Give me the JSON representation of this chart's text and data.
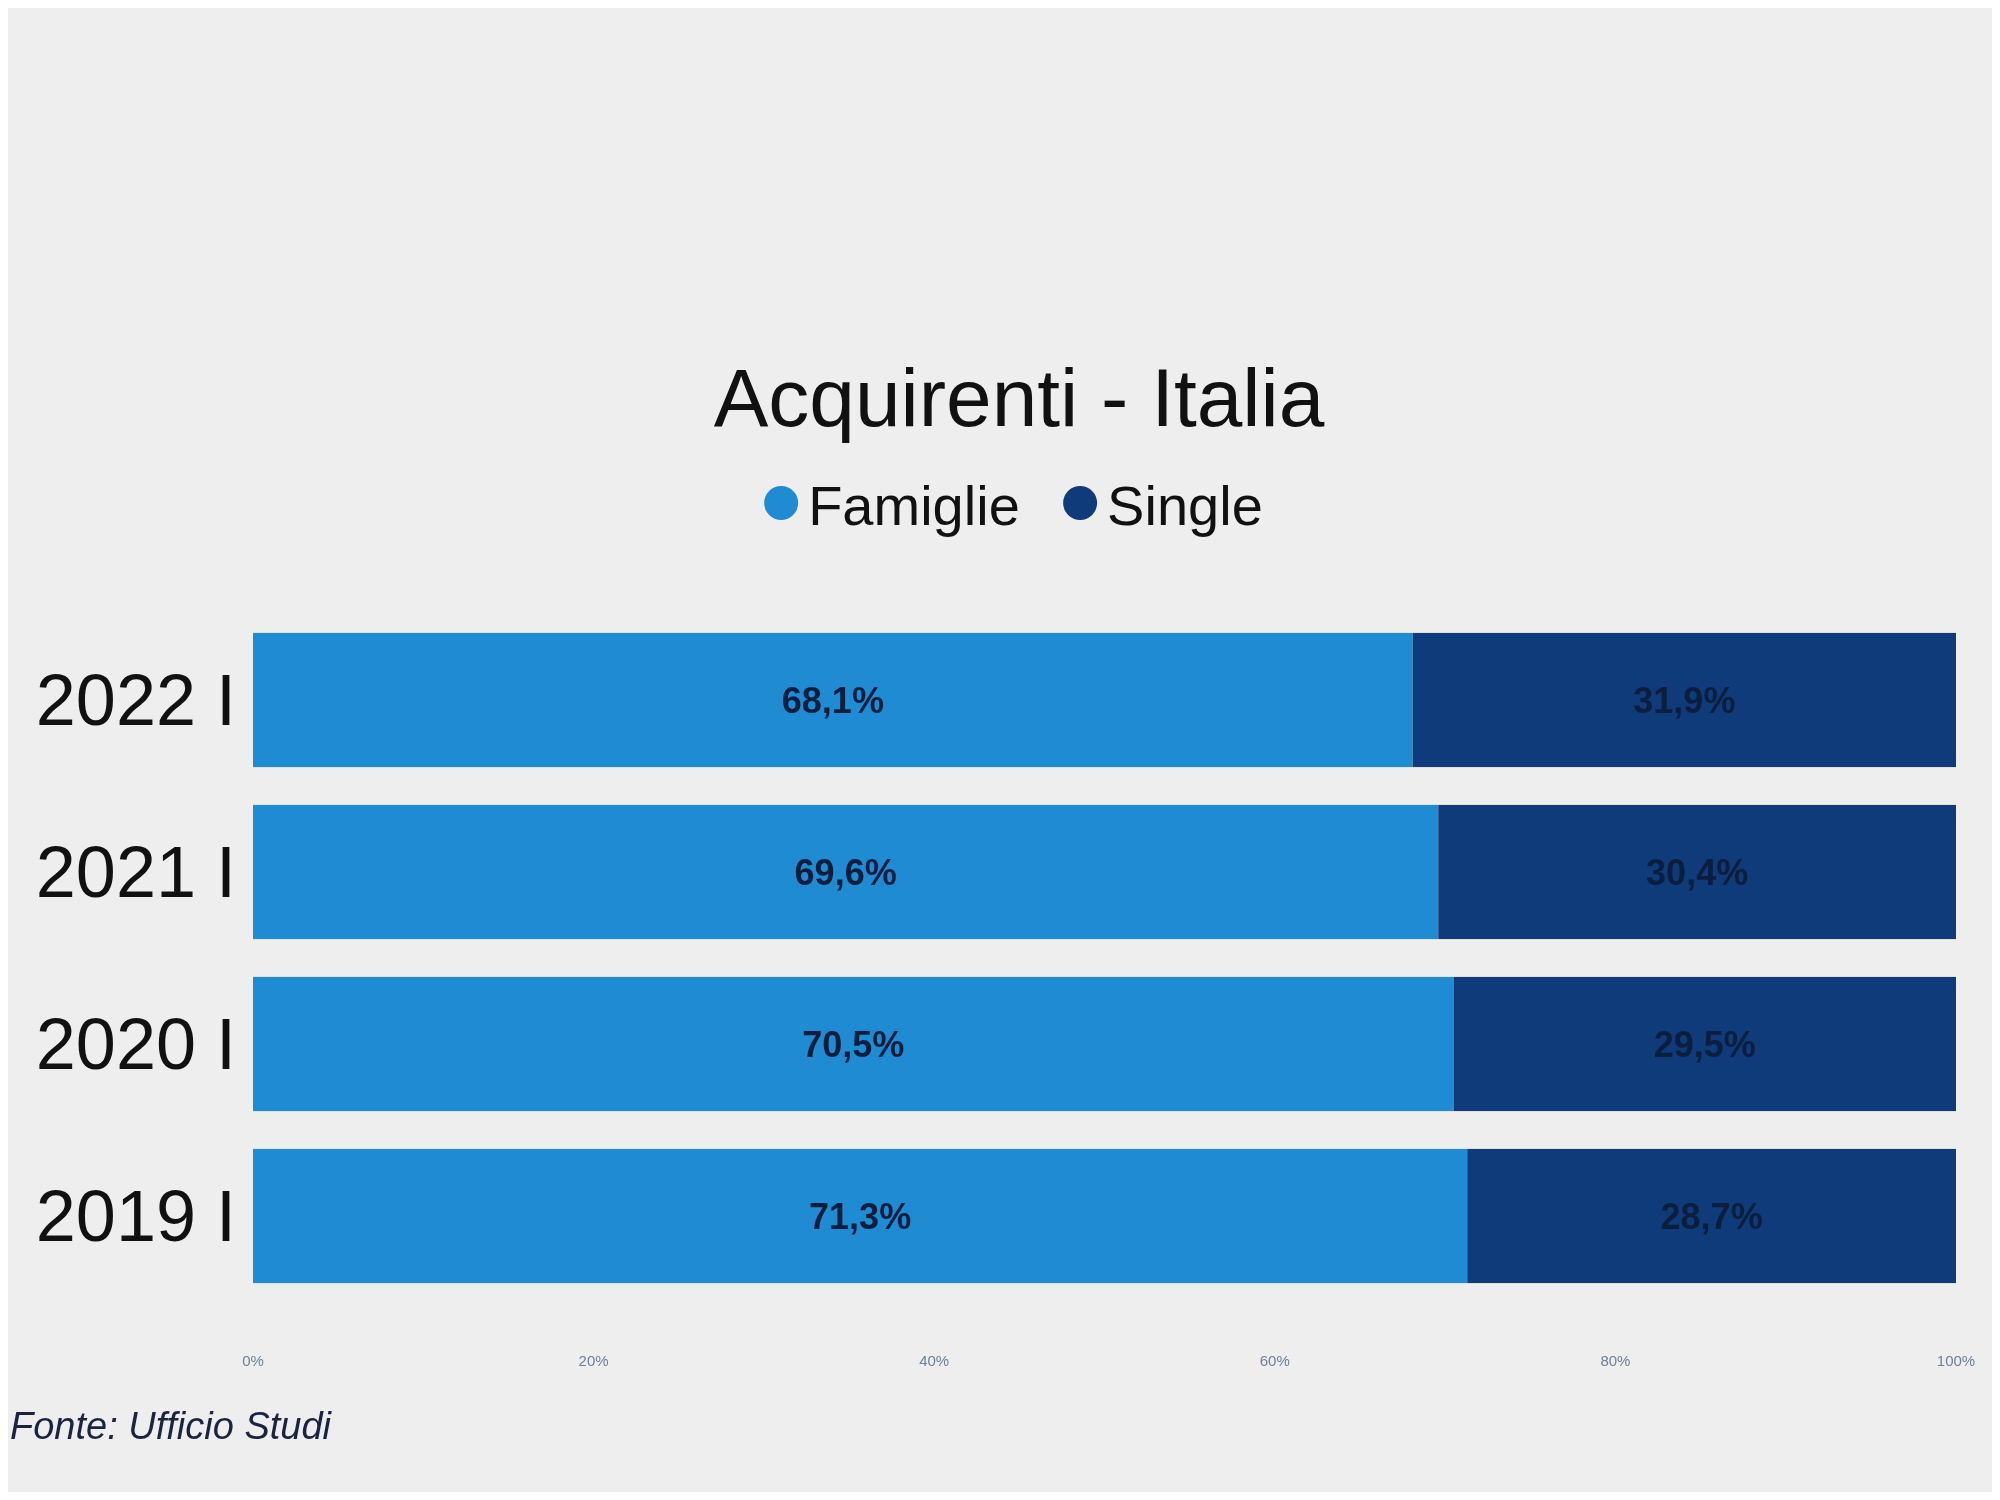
{
  "chart_data": {
    "type": "bar",
    "orientation": "horizontal",
    "stacked": true,
    "title": "Acquirenti - Italia",
    "categories": [
      "2022 I",
      "2021 I",
      "2020 I",
      "2019 I"
    ],
    "series": [
      {
        "name": "Famiglie",
        "color": "#1e8bd3",
        "values": [
          68.1,
          69.6,
          70.5,
          71.3
        ],
        "value_labels": [
          "68,1%",
          "69,6%",
          "70,5%",
          "71,3%"
        ]
      },
      {
        "name": "Single",
        "color": "#0f3b7a",
        "values": [
          31.9,
          30.4,
          29.5,
          28.7
        ],
        "value_labels": [
          "31,9%",
          "30,4%",
          "29,5%",
          "28,7%"
        ]
      }
    ],
    "xlim": [
      0,
      100
    ],
    "xticks": [
      {
        "value": 0,
        "label": "0%"
      },
      {
        "value": 20,
        "label": "20%"
      },
      {
        "value": 40,
        "label": "40%"
      },
      {
        "value": 60,
        "label": "60%"
      },
      {
        "value": 80,
        "label": "80%"
      },
      {
        "value": 100,
        "label": "100%"
      }
    ],
    "grid": false,
    "legend": "top",
    "annotations": [
      "Fonte: Ufficio Studi"
    ]
  }
}
